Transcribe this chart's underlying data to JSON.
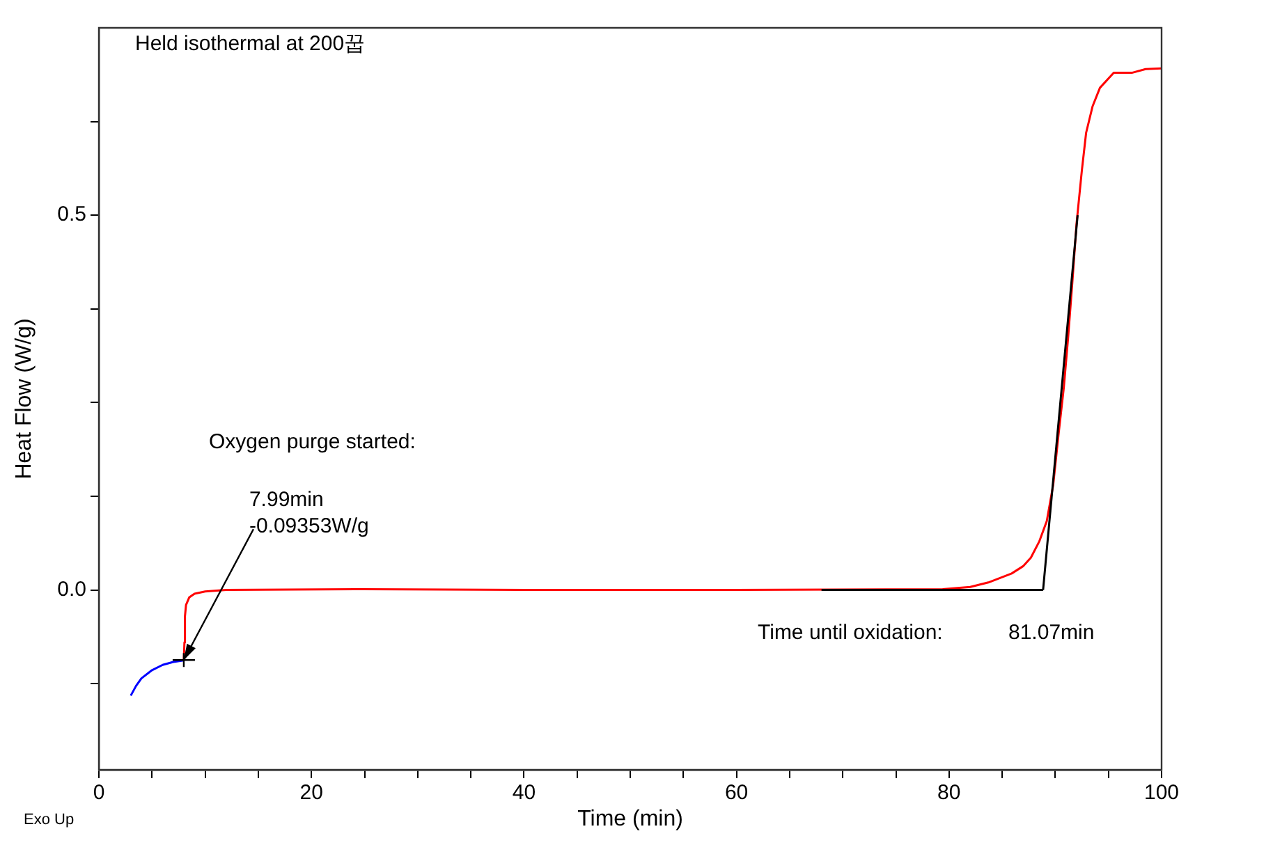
{
  "chart_data": {
    "type": "line",
    "xlabel": "Time (min)",
    "ylabel": "Heat Flow (W/g)",
    "annotations": [
      "Held isothermal at 200꿉",
      "Oxygen purge started:",
      {
        "text": "7.99min\n-0.09353W/g",
        "x": 7.99,
        "y": -0.09353
      },
      "Time until oxidation:",
      "81.07min",
      "Exo Up"
    ],
    "xlim": [
      0,
      100
    ],
    "xticks": [
      0,
      {
        "value": 5,
        "label": null
      },
      {
        "value": 10,
        "label": null
      },
      {
        "value": 15,
        "label": null
      },
      20,
      {
        "value": 25,
        "label": null
      },
      {
        "value": 30,
        "label": null
      },
      {
        "value": 35,
        "label": null
      },
      40,
      {
        "value": 45,
        "label": null
      },
      {
        "value": 50,
        "label": null
      },
      {
        "value": 55,
        "label": null
      },
      60,
      {
        "value": 65,
        "label": null
      },
      {
        "value": 70,
        "label": null
      },
      {
        "value": 75,
        "label": null
      },
      80,
      {
        "value": 85,
        "label": null
      },
      {
        "value": 90,
        "label": null
      },
      {
        "value": 95,
        "label": null
      },
      100
    ],
    "ylim": [
      -0.24,
      0.75
    ],
    "yticks": [
      {
        "value": -0.125,
        "label": null
      },
      {
        "value": 0,
        "label": "0.0"
      },
      {
        "value": 0.125,
        "label": null
      },
      {
        "value": 0.25,
        "label": null
      },
      {
        "value": 0.375,
        "label": null
      },
      {
        "value": 0.5,
        "label": "0.5"
      },
      {
        "value": 0.625,
        "label": null
      }
    ],
    "series": [
      {
        "color": "#0000ff",
        "x": [
          3,
          3.5,
          4,
          5,
          6,
          7,
          7.99
        ],
        "values": [
          -0.141,
          -0.128,
          -0.118,
          -0.107,
          -0.1,
          -0.096,
          -0.094
        ]
      },
      {
        "color": "#ff0000",
        "x": [
          7.99,
          8.05,
          8.1,
          8.2,
          8.5,
          9,
          10,
          12,
          25,
          40,
          60,
          79.4,
          82,
          83.7,
          85.9,
          87,
          87.7,
          88.5,
          89.2,
          89.8,
          90.3,
          90.8,
          91.2,
          91.6,
          92,
          92.5,
          92.9,
          93.5,
          94.2,
          95.5,
          97.2,
          98.5,
          100
        ],
        "values": [
          -0.094,
          -0.07,
          -0.035,
          -0.02,
          -0.01,
          -0.005,
          -0.002,
          0,
          0.001,
          0,
          0,
          0.001,
          0.004,
          0.01,
          0.022,
          0.032,
          0.043,
          0.065,
          0.092,
          0.14,
          0.207,
          0.27,
          0.336,
          0.41,
          0.489,
          0.56,
          0.61,
          0.645,
          0.67,
          0.69,
          0.69,
          0.695,
          0.696
        ]
      },
      {
        "type": "line",
        "color": "#000000",
        "x": [
          68,
          88.85
        ],
        "values": [
          0,
          0
        ]
      },
      {
        "type": "line",
        "color": "#000000",
        "x": [
          88.85,
          92.1
        ],
        "values": [
          0,
          0.5
        ]
      }
    ]
  }
}
